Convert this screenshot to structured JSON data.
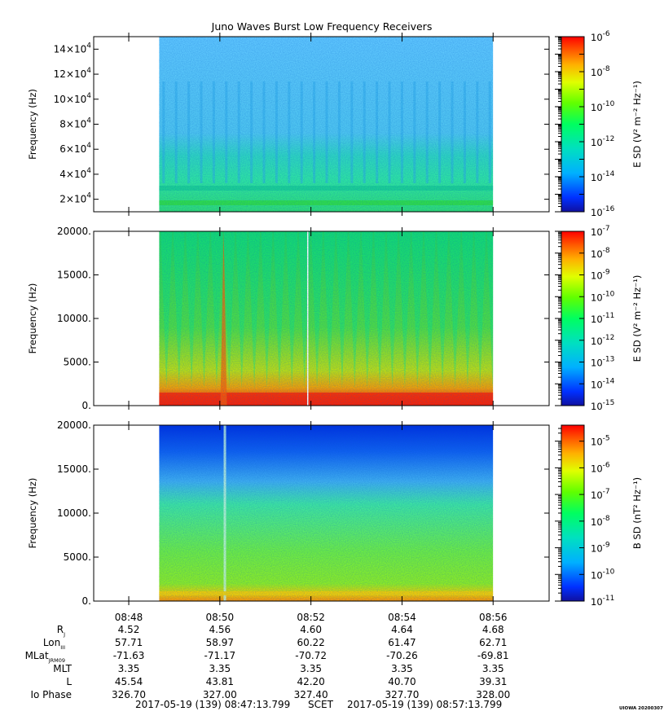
{
  "chart_data": {
    "title": "Juno Waves Burst Low Frequency Receivers",
    "type": "heatmap",
    "x_axis": {
      "tick_labels": [
        "08:48",
        "08:50",
        "08:52",
        "08:54",
        "08:56"
      ],
      "range_minutes": [
        "08:47:13.799",
        "08:57:13.799"
      ],
      "data_coverage": [
        "08:48:40",
        "08:56:00"
      ]
    },
    "panels": [
      {
        "name": "panel-1",
        "ylabel": "Frequency (Hz)",
        "ylim": [
          10000,
          150000
        ],
        "ytick_labels": [
          {
            "v": 20000,
            "m": "2",
            "e": "4"
          },
          {
            "v": 40000,
            "m": "4",
            "e": "4"
          },
          {
            "v": 60000,
            "m": "6",
            "e": "4"
          },
          {
            "v": 80000,
            "m": "8",
            "e": "4"
          },
          {
            "v": 100000,
            "m": "10",
            "e": "4"
          },
          {
            "v": 120000,
            "m": "12",
            "e": "4"
          },
          {
            "v": 140000,
            "m": "14",
            "e": "4"
          }
        ],
        "colorbar": {
          "label": "E SD (V² m⁻² Hz⁻¹)",
          "scale": "log",
          "range_exp": [
            -16,
            -6
          ],
          "tick_exps": [
            "-6",
            "-8",
            "-10",
            "-12",
            "-14",
            "-16"
          ]
        }
      },
      {
        "name": "panel-2",
        "ylabel": "Frequency (Hz)",
        "ylim": [
          0,
          20000
        ],
        "ytick_labels": [
          {
            "v": 0,
            "t": "0."
          },
          {
            "v": 5000,
            "t": "5000."
          },
          {
            "v": 10000,
            "t": "10000."
          },
          {
            "v": 15000,
            "t": "15000."
          },
          {
            "v": 20000,
            "t": "20000."
          }
        ],
        "colorbar": {
          "label": "E SD (V² m⁻² Hz⁻¹)",
          "scale": "log",
          "range_exp": [
            -15,
            -7
          ],
          "tick_exps": [
            "-7",
            "-8",
            "-9",
            "-10",
            "-11",
            "-12",
            "-13",
            "-14",
            "-15"
          ]
        }
      },
      {
        "name": "panel-3",
        "ylabel": "Frequency (Hz)",
        "ylim": [
          0,
          20000
        ],
        "ytick_labels": [
          {
            "v": 0,
            "t": "0."
          },
          {
            "v": 5000,
            "t": "5000."
          },
          {
            "v": 10000,
            "t": "10000."
          },
          {
            "v": 15000,
            "t": "15000."
          },
          {
            "v": 20000,
            "t": "20000."
          }
        ],
        "colorbar": {
          "label": "B SD (nT² Hz⁻¹)",
          "scale": "log",
          "range_exp": [
            -11,
            -4.4
          ],
          "tick_exps": [
            "-5",
            "-6",
            "-7",
            "-8",
            "-9",
            "-10",
            "-11"
          ]
        }
      }
    ],
    "ephemeris": {
      "rows": [
        {
          "label": "R",
          "sub": "J",
          "values": [
            "4.52",
            "4.56",
            "4.60",
            "4.64",
            "4.68"
          ]
        },
        {
          "label": "Lon",
          "sub": "III",
          "values": [
            "57.71",
            "58.97",
            "60.22",
            "61.47",
            "62.71"
          ]
        },
        {
          "label": "MLat",
          "sub": "JRM09",
          "values": [
            "-71.63",
            "-71.17",
            "-70.72",
            "-70.26",
            "-69.81"
          ]
        },
        {
          "label": "MLT",
          "sub": "",
          "values": [
            "3.35",
            "3.35",
            "3.35",
            "3.35",
            "3.35"
          ]
        },
        {
          "label": "L",
          "sub": "",
          "values": [
            "45.54",
            "43.81",
            "42.20",
            "40.70",
            "39.31"
          ]
        },
        {
          "label": "Io Phase",
          "sub": "",
          "values": [
            "326.70",
            "327.00",
            "327.40",
            "327.70",
            "328.00"
          ]
        }
      ]
    },
    "footer": {
      "start": "2017-05-19 (139) 08:47:13.799",
      "mid": "SCET",
      "end": "2017-05-19 (139) 08:57:13.799"
    },
    "stamp": "UIOWA 20200307"
  }
}
